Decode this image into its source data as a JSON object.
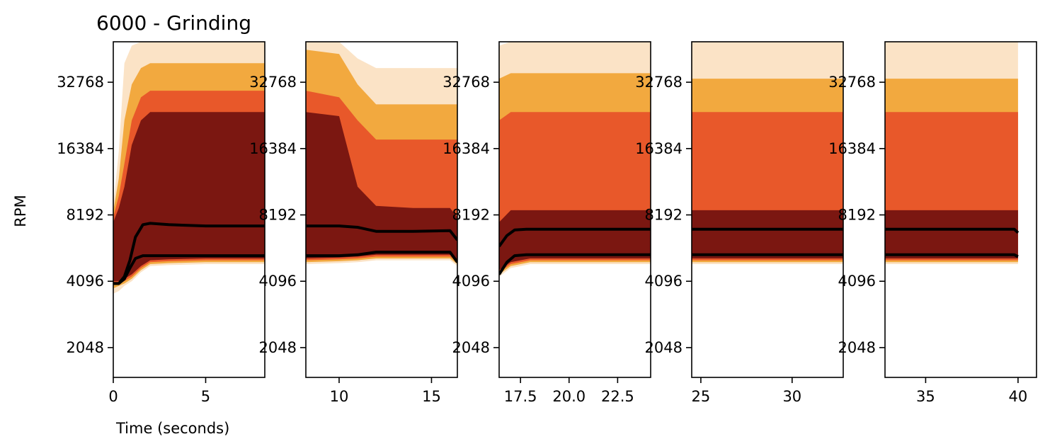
{
  "chart_data": {
    "type": "area",
    "title": "6000 - Grinding",
    "xlabel": "Time (seconds)",
    "ylabel": "RPM",
    "y_scale": "log2",
    "ylim": [
      1500,
      50000
    ],
    "y_ticks": [
      2048,
      4096,
      8192,
      16384,
      32768
    ],
    "y_tick_labels": [
      "2048",
      "4096",
      "8192",
      "16384",
      "32768"
    ],
    "band_colors": [
      "#fbe3c6",
      "#f2a93f",
      "#e8582a",
      "#7b1711"
    ],
    "line_color": "#000000",
    "panels": [
      {
        "xlim": [
          0,
          8.2
        ],
        "x_ticks": [
          0,
          5
        ],
        "x_tick_labels": [
          "0",
          "5"
        ],
        "bands": [
          {
            "t": [
              0,
              0.3,
              0.6,
              1.0,
              1.5,
              2.0,
              3,
              5,
              8.2
            ],
            "lo": [
              3600,
              3700,
              3900,
              4100,
              4500,
              4800,
              4850,
              4900,
              4900
            ],
            "hi": [
              9000,
              16000,
              40000,
              48000,
              50000,
              50000,
              50000,
              50000,
              50000
            ]
          },
          {
            "t": [
              0,
              0.3,
              0.6,
              1.0,
              1.5,
              2.0,
              3,
              5,
              8.2
            ],
            "lo": [
              3800,
              3900,
              4000,
              4200,
              4600,
              4900,
              4950,
              5000,
              5000
            ],
            "hi": [
              8500,
              12000,
              22000,
              32000,
              38000,
              40000,
              40000,
              40000,
              40000
            ]
          },
          {
            "t": [
              0,
              0.3,
              0.6,
              1.0,
              1.5,
              2.0,
              3,
              5,
              8.2
            ],
            "lo": [
              4000,
              4000,
              4100,
              4300,
              4700,
              5000,
              5050,
              5100,
              5100
            ],
            "hi": [
              8000,
              10000,
              14000,
              22000,
              28000,
              30000,
              30000,
              30000,
              30000
            ]
          },
          {
            "t": [
              0,
              0.3,
              0.6,
              1.0,
              1.5,
              2.0,
              3,
              5,
              8.2
            ],
            "lo": [
              4100,
              4100,
              4200,
              4400,
              4800,
              5100,
              5150,
              5200,
              5200
            ],
            "hi": [
              7600,
              8800,
              11000,
              17000,
              22000,
              24000,
              24000,
              24000,
              24000
            ]
          }
        ],
        "lines": [
          {
            "t": [
              0,
              0.3,
              0.6,
              0.9,
              1.2,
              1.6,
              2.0,
              3,
              5,
              8.2
            ],
            "rpm": [
              4000,
              4000,
              4300,
              5100,
              6500,
              7400,
              7500,
              7400,
              7300,
              7300
            ]
          },
          {
            "t": [
              0,
              0.3,
              0.6,
              0.9,
              1.2,
              1.6,
              2.0,
              3,
              5,
              8.2
            ],
            "rpm": [
              4000,
              4000,
              4200,
              4700,
              5200,
              5350,
              5350,
              5350,
              5350,
              5350
            ]
          }
        ]
      },
      {
        "xlim": [
          8.2,
          16.4
        ],
        "x_ticks": [
          10,
          15
        ],
        "x_tick_labels": [
          "10",
          "15"
        ],
        "bands": [
          {
            "t": [
              8.2,
              10,
              11,
              12,
              14,
              16,
              16.4
            ],
            "lo": [
              4900,
              4950,
              5000,
              5100,
              5100,
              5100,
              4800
            ],
            "hi": [
              50000,
              50000,
              42000,
              38000,
              38000,
              38000,
              38000
            ]
          },
          {
            "t": [
              8.2,
              10,
              11,
              12,
              14,
              16,
              16.4
            ],
            "lo": [
              5000,
              5050,
              5100,
              5200,
              5200,
              5200,
              4900
            ],
            "hi": [
              46000,
              44000,
              32000,
              26000,
              26000,
              26000,
              26000
            ]
          },
          {
            "t": [
              8.2,
              10,
              11,
              12,
              14,
              16,
              16.4
            ],
            "lo": [
              5100,
              5150,
              5200,
              5300,
              5300,
              5300,
              5000
            ],
            "hi": [
              30000,
              28000,
              22000,
              18000,
              18000,
              18000,
              18000
            ]
          },
          {
            "t": [
              8.2,
              10,
              11,
              12,
              14,
              16,
              16.4
            ],
            "lo": [
              5200,
              5250,
              5300,
              5400,
              5400,
              5400,
              5100
            ],
            "hi": [
              24000,
              23000,
              11000,
              9000,
              8800,
              8800,
              8000
            ]
          }
        ],
        "lines": [
          {
            "t": [
              8.2,
              10,
              11,
              12,
              13,
              14,
              16,
              16.4
            ],
            "rpm": [
              7300,
              7300,
              7200,
              6900,
              6900,
              6900,
              6950,
              6300
            ]
          },
          {
            "t": [
              8.2,
              10,
              11,
              12,
              13,
              14,
              16,
              16.4
            ],
            "rpm": [
              5350,
              5350,
              5400,
              5550,
              5550,
              5550,
              5550,
              5000
            ]
          }
        ]
      },
      {
        "xlim": [
          16.4,
          24.2
        ],
        "x_ticks": [
          17.5,
          20.0,
          22.5
        ],
        "x_tick_labels": [
          "17.5",
          "20.0",
          "22.5"
        ],
        "bands": [
          {
            "t": [
              16.4,
              17.0,
              18,
              20,
              24.2
            ],
            "lo": [
              4300,
              4700,
              4900,
              4900,
              4900
            ],
            "hi": [
              48000,
              50000,
              50000,
              50000,
              50000
            ]
          },
          {
            "t": [
              16.4,
              17.0,
              18,
              20,
              24.2
            ],
            "lo": [
              4400,
              4800,
              5000,
              5000,
              5000
            ],
            "hi": [
              34000,
              36000,
              36000,
              36000,
              36000
            ]
          },
          {
            "t": [
              16.4,
              17.0,
              18,
              20,
              24.2
            ],
            "lo": [
              4500,
              4900,
              5100,
              5100,
              5100
            ],
            "hi": [
              22000,
              24000,
              24000,
              24000,
              24000
            ]
          },
          {
            "t": [
              16.4,
              17.0,
              18,
              20,
              24.2
            ],
            "lo": [
              4600,
              5000,
              5200,
              5200,
              5200
            ],
            "hi": [
              7600,
              8600,
              8600,
              8600,
              8600
            ]
          }
        ],
        "lines": [
          {
            "t": [
              16.4,
              16.8,
              17.2,
              17.8,
              19,
              24.2
            ],
            "rpm": [
              5900,
              6600,
              7000,
              7050,
              7050,
              7050
            ]
          },
          {
            "t": [
              16.4,
              16.8,
              17.2,
              17.8,
              19,
              24.2
            ],
            "rpm": [
              4400,
              5000,
              5350,
              5400,
              5400,
              5400
            ]
          }
        ]
      },
      {
        "xlim": [
          24.5,
          32.8
        ],
        "x_ticks": [
          25,
          30
        ],
        "x_tick_labels": [
          "25",
          "30"
        ],
        "bands": [
          {
            "t": [
              24.5,
              32.8
            ],
            "lo": [
              4900,
              4900
            ],
            "hi": [
              50000,
              50000
            ]
          },
          {
            "t": [
              24.5,
              32.8
            ],
            "lo": [
              5000,
              5000
            ],
            "hi": [
              34000,
              34000
            ]
          },
          {
            "t": [
              24.5,
              32.8
            ],
            "lo": [
              5100,
              5100
            ],
            "hi": [
              24000,
              24000
            ]
          },
          {
            "t": [
              24.5,
              32.8
            ],
            "lo": [
              5200,
              5200
            ],
            "hi": [
              8600,
              8600
            ]
          }
        ],
        "lines": [
          {
            "t": [
              24.5,
              32.8
            ],
            "rpm": [
              7050,
              7050
            ]
          },
          {
            "t": [
              24.5,
              32.8
            ],
            "rpm": [
              5400,
              5400
            ]
          }
        ]
      },
      {
        "xlim": [
          32.8,
          41.0
        ],
        "x_ticks": [
          35,
          40
        ],
        "x_tick_labels": [
          "35",
          "40"
        ],
        "bands": [
          {
            "t": [
              32.8,
              39.9,
              40.0
            ],
            "lo": [
              4900,
              4900,
              4900
            ],
            "hi": [
              50000,
              50000,
              50000
            ]
          },
          {
            "t": [
              32.8,
              39.9,
              40.0
            ],
            "lo": [
              5000,
              5000,
              5000
            ],
            "hi": [
              34000,
              34000,
              34000
            ]
          },
          {
            "t": [
              32.8,
              39.9,
              40.0
            ],
            "lo": [
              5100,
              5100,
              5100
            ],
            "hi": [
              24000,
              24000,
              24000
            ]
          },
          {
            "t": [
              32.8,
              39.9,
              40.0
            ],
            "lo": [
              5200,
              5200,
              5200
            ],
            "hi": [
              8600,
              8600,
              8600
            ]
          }
        ],
        "lines": [
          {
            "t": [
              32.8,
              39.8,
              40.0
            ],
            "rpm": [
              7050,
              7050,
              6800
            ]
          },
          {
            "t": [
              32.8,
              39.8,
              40.0
            ],
            "rpm": [
              5400,
              5400,
              5300
            ]
          }
        ]
      }
    ]
  }
}
